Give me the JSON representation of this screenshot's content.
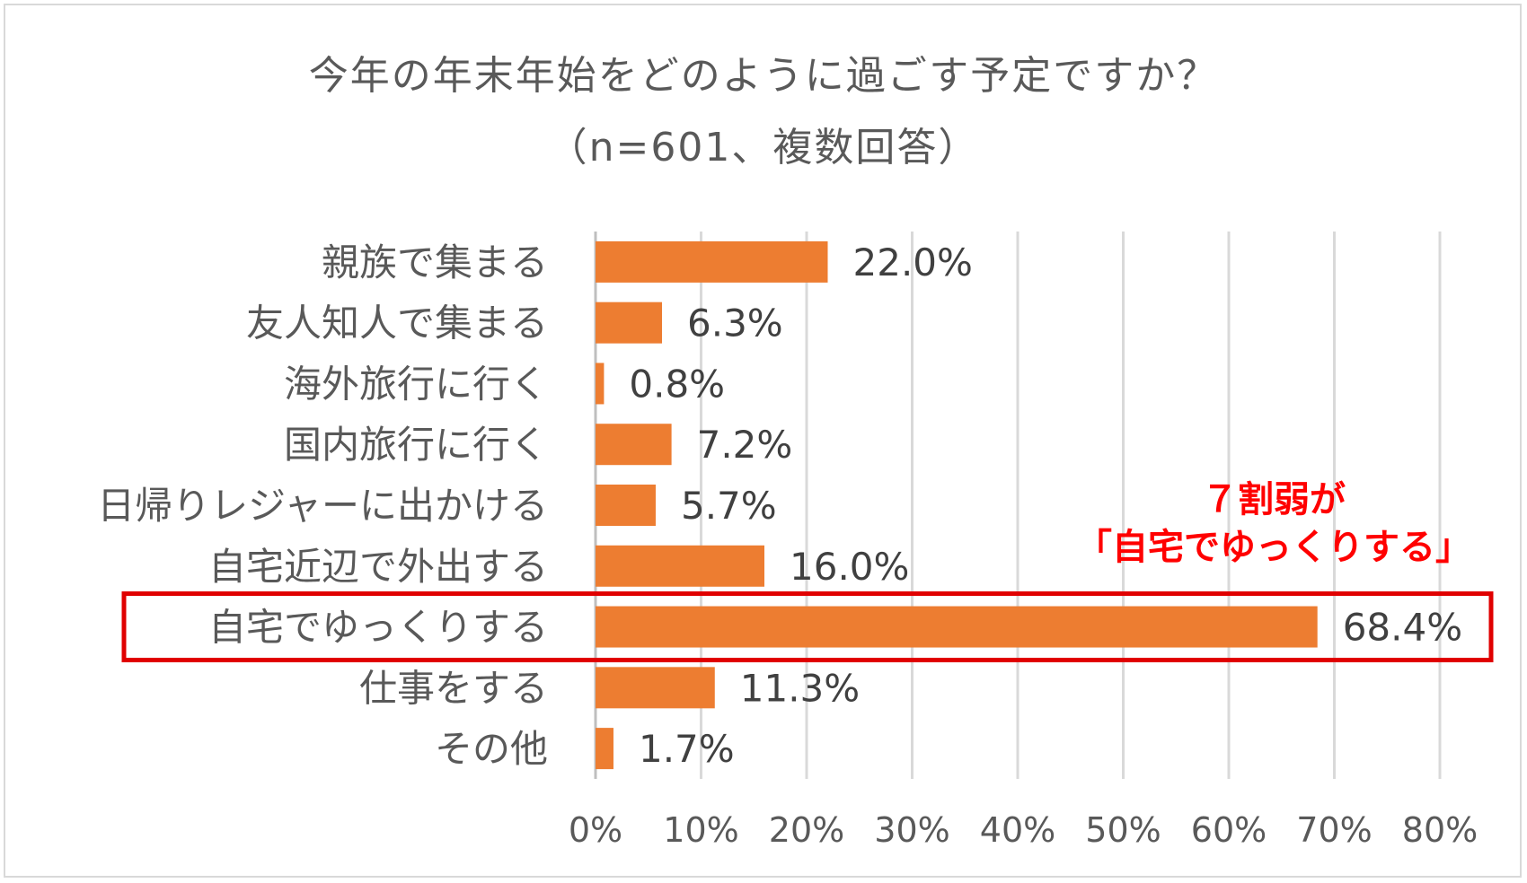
{
  "chart_data": {
    "type": "bar",
    "orientation": "horizontal",
    "title": "今年の年末年始をどのように過ごす予定ですか？",
    "subtitle": "（n=601、複数回答）",
    "categories": [
      "親族で集まる",
      "友人知人で集まる",
      "海外旅行に行く",
      "国内旅行に行く",
      "日帰りレジャーに出かける",
      "自宅近辺で外出する",
      "自宅でゆっくりする",
      "仕事をする",
      "その他"
    ],
    "values": [
      22.0,
      6.3,
      0.8,
      7.2,
      5.7,
      16.0,
      68.4,
      11.3,
      1.7
    ],
    "value_labels": [
      "22.0%",
      "6.3%",
      "0.8%",
      "7.2%",
      "5.7%",
      "16.0%",
      "68.4%",
      "11.3%",
      "1.7%"
    ],
    "xlim": [
      0,
      80
    ],
    "x_ticks": [
      0,
      10,
      20,
      30,
      40,
      50,
      60,
      70,
      80
    ],
    "x_tick_labels": [
      "0%",
      "10%",
      "20%",
      "30%",
      "40%",
      "50%",
      "60%",
      "70%",
      "80%"
    ],
    "grid": true,
    "bar_color": "#ed7d31",
    "highlight_category": "自宅でゆっくりする",
    "highlight_color": "#e00000",
    "annotation": [
      "７割弱が",
      "「自宅でゆっくりする」"
    ],
    "annotation_color": "#ff0000"
  }
}
